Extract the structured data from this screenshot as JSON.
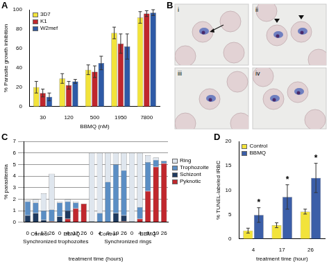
{
  "chart_data": [
    {
      "type": "bar",
      "title": "A",
      "x_label": "BBMQ (nM)",
      "y_label": "% Parasite growth inhibition",
      "categories": [
        "30",
        "120",
        "500",
        "1950",
        "7800"
      ],
      "series": [
        {
          "name": "3D7",
          "color": "#f2e33b",
          "values": [
            20,
            29,
            38,
            76,
            92
          ],
          "errors": [
            6,
            5,
            5,
            6,
            6
          ]
        },
        {
          "name": "K1",
          "color": "#c0272d",
          "values": [
            14,
            22,
            36,
            65,
            96
          ],
          "errors": [
            4,
            4,
            6,
            10,
            3
          ]
        },
        {
          "name": "W2mef",
          "color": "#2e5aa6",
          "values": [
            10,
            26,
            45,
            62,
            97
          ],
          "errors": [
            4,
            2,
            7,
            13,
            3
          ]
        }
      ],
      "ylim": [
        0,
        100
      ],
      "yticks": [
        0,
        20,
        40,
        60,
        80,
        100
      ],
      "grid": false,
      "legend": "upper left"
    },
    {
      "type": "bar",
      "stacked": true,
      "title": "C",
      "x_label": "treatment time (hours)",
      "y_label": "% parasitemia",
      "categories": [
        "0",
        "4",
        "17",
        "26",
        "0",
        "4",
        "17",
        "26",
        "0",
        "4",
        "9",
        "19",
        "26",
        "0",
        "4",
        "9",
        "19",
        "26"
      ],
      "category_groups": [
        {
          "label": "Control",
          "size": 4
        },
        {
          "label": "BBMQ",
          "size": 4
        },
        {
          "label": "Control",
          "size": 5
        },
        {
          "label": "BBMQ",
          "size": 5
        }
      ],
      "outer_groups": [
        {
          "label": "Synchronized trophozoites",
          "size": 8
        },
        {
          "label": "Synchronized rings",
          "size": 10
        }
      ],
      "series": [
        {
          "name": "Ring",
          "color": "#dfe6ee",
          "values": [
            0.1,
            0.3,
            1.5,
            3.1,
            0.1,
            0.2,
            0.1,
            0,
            5.9,
            5.2,
            2.5,
            1.0,
            1.5,
            5.9,
            4.7,
            0.6,
            0.2,
            0
          ]
        },
        {
          "name": "Trophozoite",
          "color": "#5b8ec4",
          "values": [
            1.2,
            0.9,
            0.8,
            1.0,
            1.2,
            0.8,
            0.5,
            0,
            0.1,
            0.8,
            3.5,
            4.2,
            3.9,
            0.1,
            1.0,
            2.5,
            0.6,
            0.2
          ]
        },
        {
          "name": "Schizont",
          "color": "#1f3a5f",
          "values": [
            0.6,
            0.8,
            0.2,
            0,
            0.5,
            0.7,
            0,
            0,
            0,
            0,
            0,
            0.8,
            0.5,
            0,
            0,
            0,
            0,
            0
          ]
        },
        {
          "name": "Pyknotic",
          "color": "#c0272d",
          "values": [
            0,
            0,
            0,
            0.1,
            0,
            0.3,
            1.2,
            1.6,
            0,
            0,
            0,
            0,
            0.1,
            0,
            0.3,
            2.7,
            4.8,
            5.1
          ]
        }
      ],
      "ylim": [
        0,
        7
      ],
      "yticks": [
        0,
        1,
        2,
        3,
        4,
        5,
        6,
        7
      ],
      "grid": true,
      "legend": "right"
    },
    {
      "type": "bar",
      "title": "D",
      "x_label": "treatment time (hour)",
      "y_label": "% TUNEL-labeled IRBC",
      "categories": [
        "4",
        "17",
        "26"
      ],
      "series": [
        {
          "name": "Control",
          "color": "#f2e33b",
          "values": [
            1.7,
            2.8,
            5.6
          ],
          "errors": [
            0.5,
            0.5,
            0.5
          ]
        },
        {
          "name": "BBMQ",
          "color": "#3b5ea8",
          "values": [
            4.9,
            8.6,
            12.5
          ],
          "errors": [
            1.5,
            2.5,
            3.0
          ]
        }
      ],
      "annotations": [
        {
          "text": "*",
          "series": "BBMQ",
          "category": "4"
        },
        {
          "text": "*",
          "series": "BBMQ",
          "category": "17"
        },
        {
          "text": "*",
          "series": "BBMQ",
          "category": "26"
        }
      ],
      "ylim": [
        0,
        20
      ],
      "yticks": [
        0,
        5,
        10,
        15,
        20
      ],
      "grid": false,
      "legend": "upper left"
    }
  ],
  "images": {
    "title": "B",
    "subpanels": [
      "i",
      "ii",
      "iii",
      "iv"
    ]
  }
}
